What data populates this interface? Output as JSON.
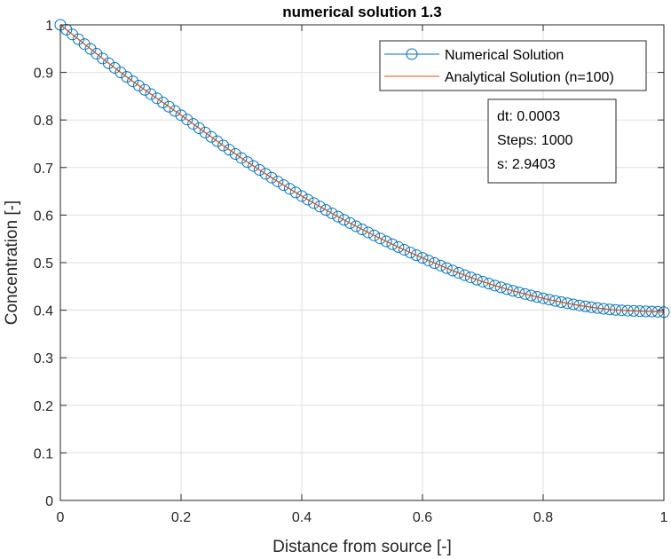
{
  "chart_data": {
    "type": "line",
    "title": "numerical solution 1.3",
    "xlabel": "Distance from source [-]",
    "ylabel": "Concentration [-]",
    "xlim": [
      0,
      1
    ],
    "ylim": [
      0,
      1
    ],
    "xticks": [
      0,
      0.2,
      0.4,
      0.6,
      0.8,
      1
    ],
    "xtick_labels": [
      "0",
      "0.2",
      "0.4",
      "0.6",
      "0.8",
      "1"
    ],
    "yticks": [
      0,
      0.1,
      0.2,
      0.3,
      0.4,
      0.5,
      0.6,
      0.7,
      0.8,
      0.9,
      1
    ],
    "ytick_labels": [
      "0",
      "0.1",
      "0.2",
      "0.3",
      "0.4",
      "0.5",
      "0.6",
      "0.7",
      "0.8",
      "0.9",
      "1"
    ],
    "grid": true,
    "legend_position": "top-right",
    "curve_points": {
      "x": [
        0,
        0.1,
        0.2,
        0.3,
        0.4,
        0.5,
        0.6,
        0.7,
        0.8,
        0.9,
        1
      ],
      "y": [
        1.0,
        0.9,
        0.81,
        0.72,
        0.64,
        0.57,
        0.51,
        0.46,
        0.425,
        0.403,
        0.396
      ]
    },
    "marker_count": 101,
    "series": [
      {
        "name": "Numerical Solution",
        "color": "#0072BD",
        "style": "line-with-circle-markers"
      },
      {
        "name": "Analytical Solution (n=100)",
        "color": "#D95319",
        "style": "line"
      }
    ],
    "annotation": {
      "lines": [
        "dt: 0.0003",
        "Steps: 1000",
        "s: 2.9403"
      ]
    }
  }
}
